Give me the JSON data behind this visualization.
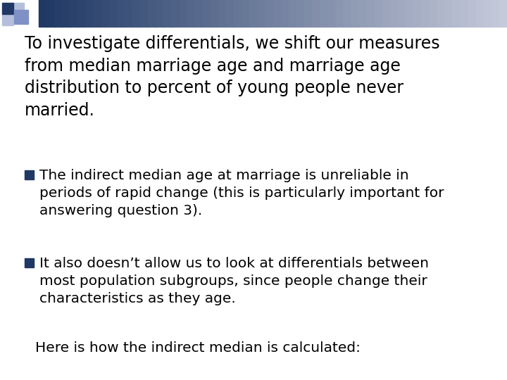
{
  "bg_color": "#ffffff",
  "title_text": "To investigate differentials, we shift our measures\nfrom median marriage age and marriage age\ndistribution to percent of young people never\nmarried.",
  "bullet1_square_color": "#1F3864",
  "bullet1_text": "The indirect median age at marriage is unreliable in\nperiods of rapid change (this is particularly important for\nanswering question 3).",
  "bullet2_square_color": "#1F3864",
  "bullet2_text": "It also doesn’t allow us to look at differentials between\nmost population subgroups, since people change their\ncharacteristics as they age.",
  "footer_text": "Here is how the indirect median is calculated:",
  "title_fontsize": 17.0,
  "bullet_fontsize": 14.5,
  "footer_fontsize": 14.5,
  "text_color": "#000000",
  "font_family": "DejaVu Sans",
  "header_dark": "#1F3864",
  "header_light": "#C8CCDC",
  "sq_dark": "#1F3864",
  "sq_mid": "#7f91c4",
  "sq_light": "#b4bfdc"
}
